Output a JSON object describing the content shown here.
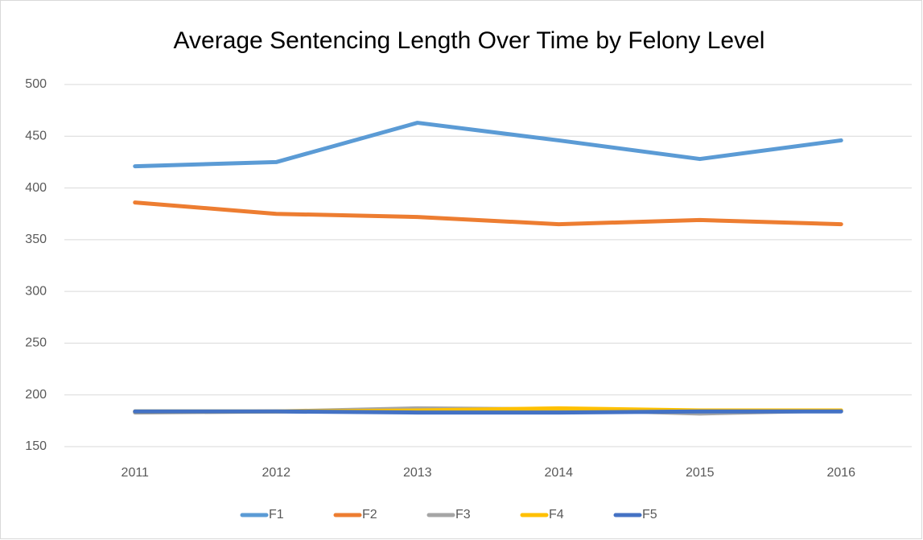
{
  "chart_data": {
    "type": "line",
    "title": "Average Sentencing Length Over Time by Felony Level",
    "categories": [
      "2011",
      "2012",
      "2013",
      "2014",
      "2015",
      "2016"
    ],
    "series": [
      {
        "name": "F1",
        "color": "#5b9bd5",
        "values": [
          421,
          425,
          463,
          446,
          428,
          446
        ]
      },
      {
        "name": "F2",
        "color": "#ed7d31",
        "values": [
          386,
          375,
          372,
          365,
          369,
          365
        ]
      },
      {
        "name": "F3",
        "color": "#a5a5a5",
        "values": [
          183,
          184,
          187,
          186,
          182,
          185
        ]
      },
      {
        "name": "F4",
        "color": "#ffc000",
        "values": [
          184,
          184,
          185,
          187,
          185,
          185
        ]
      },
      {
        "name": "F5",
        "color": "#4472c4",
        "values": [
          184,
          184,
          183,
          183,
          184,
          184
        ]
      }
    ],
    "ylim": [
      150,
      500
    ],
    "yticks": [
      150,
      200,
      250,
      300,
      350,
      400,
      450,
      500
    ],
    "grid": true,
    "legend": "bottom"
  }
}
